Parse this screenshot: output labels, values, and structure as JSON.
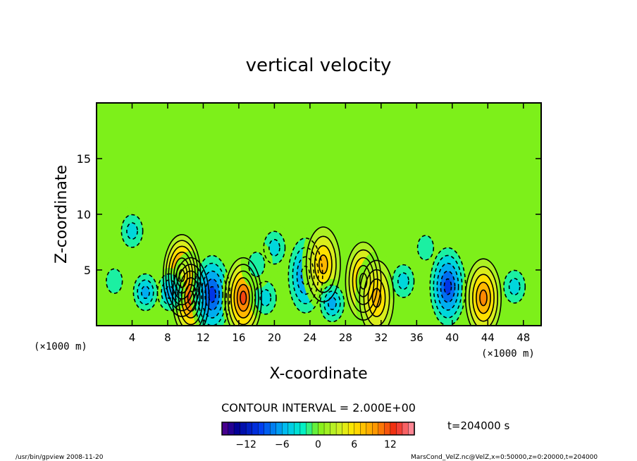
{
  "chart_data": {
    "type": "heatmap",
    "title": "vertical velocity",
    "xlabel": "X-coordinate",
    "ylabel": "Z-coordinate",
    "x_unit_left": "(×1000 m)",
    "x_unit_right": "(×1000 m)",
    "xlim": [
      0,
      50
    ],
    "ylim": [
      0,
      20
    ],
    "x_ticks": [
      4,
      8,
      12,
      16,
      20,
      24,
      28,
      32,
      36,
      40,
      44,
      48
    ],
    "y_ticks": [
      5,
      10,
      15
    ],
    "contour_interval_label": "CONTOUR INTERVAL = 2.000E+00",
    "time_label": "t=204000 s",
    "colorbar": {
      "min": -16,
      "max": 16,
      "ticks": [
        -12,
        -6,
        0,
        6,
        12
      ],
      "tick_labels": [
        "−12",
        "−6",
        "0",
        "6",
        "12"
      ]
    },
    "cells": [
      {
        "x": 9.6,
        "z": 4.5,
        "value": 14
      },
      {
        "x": 10.6,
        "z": 2.5,
        "value": 12
      },
      {
        "x": 13.0,
        "z": 2.8,
        "value": -10
      },
      {
        "x": 8.2,
        "z": 3.0,
        "value": -6
      },
      {
        "x": 16.5,
        "z": 2.5,
        "value": 11
      },
      {
        "x": 19.0,
        "z": 2.5,
        "value": -3
      },
      {
        "x": 5.5,
        "z": 3.0,
        "value": -5
      },
      {
        "x": 2.0,
        "z": 4.0,
        "value": -2
      },
      {
        "x": 23.5,
        "z": 4.5,
        "value": -8
      },
      {
        "x": 25.5,
        "z": 5.5,
        "value": 7
      },
      {
        "x": 26.5,
        "z": 2.0,
        "value": -5
      },
      {
        "x": 30.0,
        "z": 4.0,
        "value": 9
      },
      {
        "x": 31.5,
        "z": 2.5,
        "value": 8
      },
      {
        "x": 34.5,
        "z": 4.0,
        "value": -4
      },
      {
        "x": 37.0,
        "z": 7.0,
        "value": -2
      },
      {
        "x": 39.5,
        "z": 3.5,
        "value": -9
      },
      {
        "x": 43.5,
        "z": 2.5,
        "value": 10
      },
      {
        "x": 47.0,
        "z": 3.5,
        "value": -3
      },
      {
        "x": 20.0,
        "z": 7.0,
        "value": -4
      },
      {
        "x": 18.0,
        "z": 5.5,
        "value": -2
      },
      {
        "x": 4.0,
        "z": 8.5,
        "value": -3
      }
    ]
  },
  "footer": {
    "left": "/usr/bin/gpview  2008-11-20",
    "right": "MarsCond_VelZ.nc@VelZ,x=0:50000,z=0:20000,t=204000"
  }
}
